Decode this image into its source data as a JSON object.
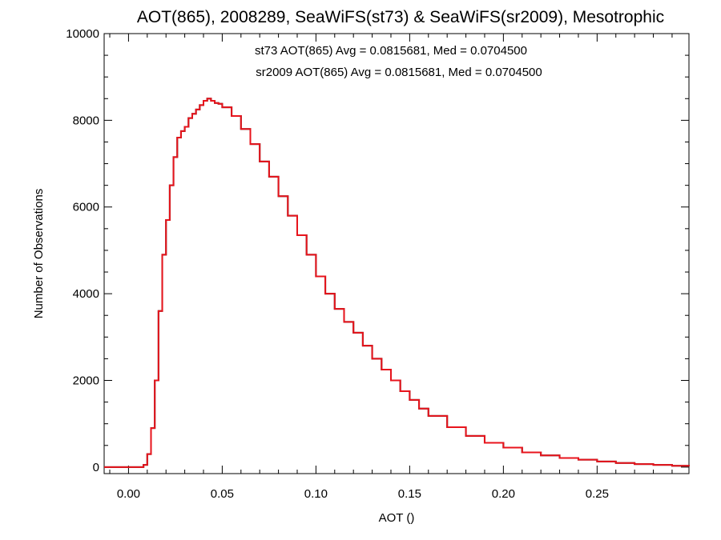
{
  "chart_data": {
    "type": "line",
    "title": "AOT(865), 2008289, SeaWiFS(st73) & SeaWiFS(sr2009), Mesotrophic",
    "xlabel": "AOT ()",
    "ylabel": "Number of Observations",
    "xlim": [
      -0.013,
      0.299
    ],
    "ylim": [
      -150,
      10000
    ],
    "x_ticks": [
      0.0,
      0.05,
      0.1,
      0.15,
      0.2,
      0.25
    ],
    "x_tick_labels": [
      "0.00",
      "0.05",
      "0.10",
      "0.15",
      "0.20",
      "0.25"
    ],
    "y_ticks": [
      0,
      2000,
      4000,
      6000,
      8000,
      10000
    ],
    "y_tick_labels": [
      "0",
      "2000",
      "4000",
      "6000",
      "8000",
      "10000"
    ],
    "grid": false,
    "legend_placement": "top-center",
    "annotations": [
      {
        "text": "st73 AOT(865) Avg = 0.0815681, Med = 0.0704500",
        "color": "#000000"
      },
      {
        "text": "sr2009 AOT(865) Avg = 0.0815681, Med = 0.0704500",
        "color": "#e8141c"
      }
    ],
    "series": [
      {
        "name": "st73",
        "color": "#000000",
        "x": [
          -0.013,
          0.005,
          0.008,
          0.01,
          0.012,
          0.014,
          0.016,
          0.018,
          0.02,
          0.022,
          0.024,
          0.026,
          0.028,
          0.03,
          0.032,
          0.034,
          0.036,
          0.038,
          0.04,
          0.042,
          0.044,
          0.046,
          0.048,
          0.05,
          0.055,
          0.06,
          0.065,
          0.07,
          0.075,
          0.08,
          0.085,
          0.09,
          0.095,
          0.1,
          0.105,
          0.11,
          0.115,
          0.12,
          0.125,
          0.13,
          0.135,
          0.14,
          0.145,
          0.15,
          0.155,
          0.16,
          0.17,
          0.18,
          0.19,
          0.2,
          0.21,
          0.22,
          0.23,
          0.24,
          0.25,
          0.26,
          0.27,
          0.28,
          0.29,
          0.299
        ],
        "y": [
          0,
          0,
          50,
          300,
          900,
          2000,
          3600,
          4900,
          5700,
          6500,
          7150,
          7600,
          7750,
          7850,
          8050,
          8150,
          8250,
          8350,
          8450,
          8500,
          8450,
          8400,
          8380,
          8300,
          8100,
          7800,
          7450,
          7050,
          6700,
          6250,
          5800,
          5350,
          4900,
          4400,
          4000,
          3650,
          3350,
          3100,
          2800,
          2500,
          2250,
          2000,
          1750,
          1550,
          1350,
          1180,
          920,
          720,
          560,
          450,
          340,
          270,
          210,
          170,
          130,
          95,
          70,
          50,
          30,
          20
        ]
      },
      {
        "name": "sr2009",
        "color": "#e8141c",
        "x": [
          -0.013,
          0.005,
          0.008,
          0.01,
          0.012,
          0.014,
          0.016,
          0.018,
          0.02,
          0.022,
          0.024,
          0.026,
          0.028,
          0.03,
          0.032,
          0.034,
          0.036,
          0.038,
          0.04,
          0.042,
          0.044,
          0.046,
          0.048,
          0.05,
          0.055,
          0.06,
          0.065,
          0.07,
          0.075,
          0.08,
          0.085,
          0.09,
          0.095,
          0.1,
          0.105,
          0.11,
          0.115,
          0.12,
          0.125,
          0.13,
          0.135,
          0.14,
          0.145,
          0.15,
          0.155,
          0.16,
          0.17,
          0.18,
          0.19,
          0.2,
          0.21,
          0.22,
          0.23,
          0.24,
          0.25,
          0.26,
          0.27,
          0.28,
          0.29,
          0.299
        ],
        "y": [
          0,
          0,
          50,
          300,
          900,
          2000,
          3600,
          4900,
          5700,
          6500,
          7150,
          7600,
          7750,
          7850,
          8050,
          8150,
          8250,
          8350,
          8450,
          8500,
          8450,
          8400,
          8380,
          8300,
          8100,
          7800,
          7450,
          7050,
          6700,
          6250,
          5800,
          5350,
          4900,
          4400,
          4000,
          3650,
          3350,
          3100,
          2800,
          2500,
          2250,
          2000,
          1750,
          1550,
          1350,
          1180,
          920,
          720,
          560,
          450,
          340,
          270,
          210,
          170,
          130,
          95,
          70,
          50,
          30,
          20
        ]
      }
    ]
  }
}
